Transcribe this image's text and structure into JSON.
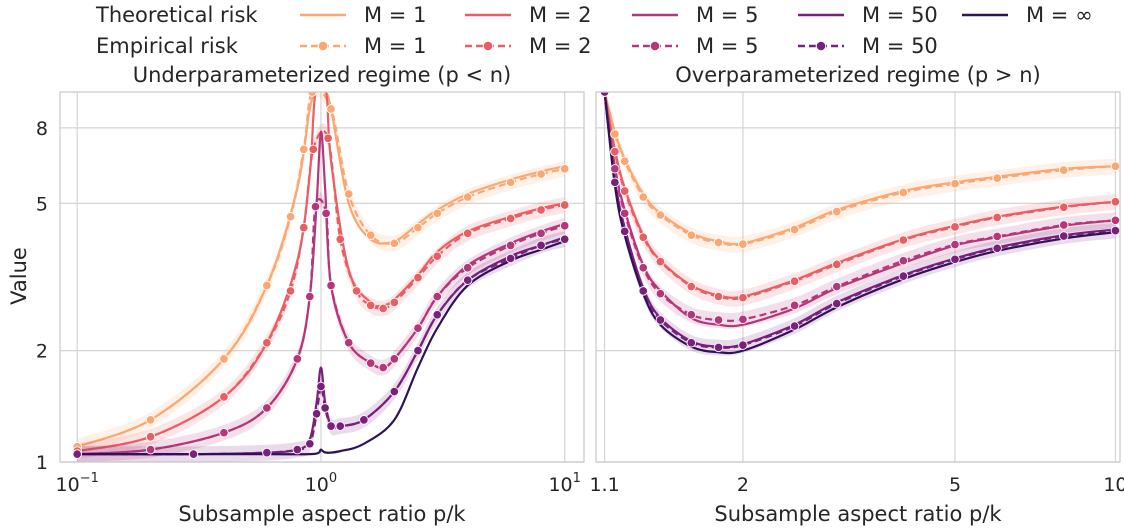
{
  "legend": {
    "row_labels": [
      "Theoretical risk",
      "Empirical risk"
    ],
    "theory_entries": [
      {
        "label": "M = 1",
        "color": "#fca772"
      },
      {
        "label": "M = 2",
        "color": "#ec5d61"
      },
      {
        "label": "M = 5",
        "color": "#b5367a"
      },
      {
        "label": "M = 50",
        "color": "#7a1f7d"
      },
      {
        "label": "M = ∞",
        "color": "#2f1357"
      }
    ],
    "empirical_entries": [
      {
        "label": "M = 1",
        "color": "#fca772"
      },
      {
        "label": "M = 2",
        "color": "#ec5d61"
      },
      {
        "label": "M = 5",
        "color": "#b5367a"
      },
      {
        "label": "M = 50",
        "color": "#7a1f7d"
      }
    ]
  },
  "ylabel": "Value",
  "chart_data": [
    {
      "type": "line",
      "title": "Underparameterized regime (p < n)",
      "xlabel": "Subsample aspect ratio p/k",
      "ylabel": "Value",
      "xscale": "log",
      "yscale": "log",
      "xlim": [
        0.085,
        12
      ],
      "ylim": [
        1,
        10
      ],
      "xticks": [
        {
          "v": 0.1,
          "label": "10",
          "exp": "−1"
        },
        {
          "v": 1,
          "label": "10",
          "exp": "0"
        },
        {
          "v": 10,
          "label": "10",
          "exp": "1"
        }
      ],
      "yticks": [
        {
          "v": 1,
          "label": "1"
        },
        {
          "v": 2,
          "label": "2"
        },
        {
          "v": 5,
          "label": "5"
        },
        {
          "v": 8,
          "label": "8"
        }
      ],
      "grid": true,
      "series": [
        {
          "name": "M = 1",
          "kind": "theoretical",
          "color": "#fca772",
          "x": [
            0.1,
            0.2,
            0.4,
            0.6,
            0.8,
            0.9,
            0.96,
            1.04,
            1.1,
            1.3,
            1.6,
            2.0,
            2.5,
            3.0,
            4.0,
            6.0,
            8.0,
            10.0
          ],
          "y": [
            1.1,
            1.3,
            1.9,
            3.0,
            5.5,
            9.0,
            10.0,
            10.0,
            9.0,
            5.0,
            4.0,
            3.95,
            4.4,
            4.8,
            5.3,
            5.8,
            6.1,
            6.3
          ]
        },
        {
          "name": "M = 1",
          "kind": "empirical",
          "color": "#fca772",
          "x": [
            0.1,
            0.2,
            0.4,
            0.6,
            0.75,
            0.85,
            0.92,
            1.1,
            1.3,
            1.6,
            2.0,
            2.5,
            3.0,
            4.0,
            6.0,
            8.0,
            10.0
          ],
          "y": [
            1.1,
            1.3,
            1.9,
            3.0,
            4.6,
            7.0,
            10.0,
            9.0,
            5.3,
            4.1,
            3.9,
            4.3,
            4.7,
            5.2,
            5.7,
            6.0,
            6.2
          ]
        },
        {
          "name": "M = 2",
          "kind": "theoretical",
          "color": "#ec5d61",
          "x": [
            0.1,
            0.2,
            0.4,
            0.6,
            0.8,
            0.9,
            0.95,
            1.05,
            1.1,
            1.3,
            1.6,
            1.8,
            2.0,
            2.5,
            3.0,
            4.0,
            6.0,
            8.0,
            10.0
          ],
          "y": [
            1.07,
            1.17,
            1.5,
            2.1,
            3.5,
            6.0,
            10.0,
            10.0,
            6.5,
            3.3,
            2.7,
            2.65,
            2.75,
            3.2,
            3.7,
            4.2,
            4.6,
            4.85,
            5.0
          ]
        },
        {
          "name": "M = 2",
          "kind": "empirical",
          "color": "#ec5d61",
          "x": [
            0.1,
            0.2,
            0.4,
            0.6,
            0.75,
            0.85,
            0.93,
            1.07,
            1.2,
            1.4,
            1.6,
            1.8,
            2.0,
            2.5,
            3.0,
            4.0,
            6.0,
            8.0,
            10.0
          ],
          "y": [
            1.07,
            1.17,
            1.5,
            2.1,
            2.9,
            4.3,
            7.0,
            7.5,
            4.0,
            2.9,
            2.65,
            2.6,
            2.7,
            3.15,
            3.6,
            4.15,
            4.55,
            4.8,
            4.95
          ]
        },
        {
          "name": "M = 5",
          "kind": "theoretical",
          "color": "#b5367a",
          "x": [
            0.1,
            0.2,
            0.4,
            0.6,
            0.8,
            0.9,
            0.96,
            1.0,
            1.04,
            1.1,
            1.3,
            1.6,
            1.8,
            2.0,
            2.5,
            3.0,
            4.0,
            6.0,
            8.0,
            10.0
          ],
          "y": [
            1.05,
            1.08,
            1.2,
            1.4,
            1.9,
            2.8,
            5.0,
            7.8,
            5.5,
            3.0,
            2.1,
            1.85,
            1.8,
            1.9,
            2.3,
            2.8,
            3.4,
            3.9,
            4.2,
            4.4
          ]
        },
        {
          "name": "M = 5",
          "kind": "empirical",
          "color": "#b5367a",
          "x": [
            0.1,
            0.2,
            0.4,
            0.6,
            0.8,
            0.9,
            0.95,
            1.05,
            1.1,
            1.3,
            1.6,
            1.8,
            2.0,
            2.5,
            3.0,
            4.0,
            6.0,
            8.0,
            10.0
          ],
          "y": [
            1.05,
            1.08,
            1.2,
            1.4,
            1.9,
            2.8,
            4.9,
            4.7,
            3.0,
            2.1,
            1.85,
            1.8,
            1.9,
            2.3,
            2.8,
            3.35,
            3.85,
            4.15,
            4.35
          ]
        },
        {
          "name": "M = 50",
          "kind": "theoretical",
          "color": "#7a1f7d",
          "x": [
            0.1,
            0.3,
            0.6,
            0.8,
            0.9,
            0.96,
            1.0,
            1.04,
            1.1,
            1.2,
            1.5,
            2.0,
            2.5,
            3.0,
            4.0,
            6.0,
            8.0,
            10.0
          ],
          "y": [
            1.05,
            1.05,
            1.06,
            1.08,
            1.15,
            1.45,
            1.8,
            1.45,
            1.25,
            1.25,
            1.3,
            1.55,
            2.0,
            2.5,
            3.1,
            3.6,
            3.85,
            4.05
          ]
        },
        {
          "name": "M = 50",
          "kind": "empirical",
          "color": "#7a1f7d",
          "x": [
            0.1,
            0.3,
            0.6,
            0.8,
            0.9,
            0.96,
            1.0,
            1.04,
            1.1,
            1.2,
            1.5,
            2.0,
            2.5,
            3.0,
            4.0,
            6.0,
            8.0,
            10.0
          ],
          "y": [
            1.05,
            1.05,
            1.06,
            1.08,
            1.12,
            1.35,
            1.6,
            1.4,
            1.25,
            1.25,
            1.3,
            1.55,
            2.0,
            2.5,
            3.1,
            3.55,
            3.85,
            4.0
          ]
        },
        {
          "name": "M = ∞",
          "kind": "theoretical",
          "color": "#2f1357",
          "x": [
            0.1,
            0.3,
            0.6,
            0.9,
            0.98,
            1.0,
            1.05,
            1.2,
            1.5,
            2.0,
            2.5,
            3.0,
            4.0,
            6.0,
            8.0,
            10.0
          ],
          "y": [
            1.05,
            1.05,
            1.05,
            1.05,
            1.06,
            1.08,
            1.06,
            1.07,
            1.12,
            1.3,
            1.8,
            2.3,
            3.0,
            3.5,
            3.75,
            3.95
          ]
        }
      ]
    },
    {
      "type": "line",
      "title": "Overparameterized regime (p > n)",
      "xlabel": "Subsample aspect ratio p/k",
      "xscale": "log",
      "yscale": "log",
      "xlim": [
        1.06,
        10.2
      ],
      "ylim": [
        1,
        10
      ],
      "xticks": [
        {
          "v": 1.1,
          "label": "1.1"
        },
        {
          "v": 2,
          "label": "2"
        },
        {
          "v": 5,
          "label": "5"
        },
        {
          "v": 10,
          "label": "10"
        }
      ],
      "grid": true,
      "series": [
        {
          "name": "M = 1",
          "kind": "theoretical",
          "color": "#fca772",
          "x": [
            1.1,
            1.15,
            1.2,
            1.3,
            1.4,
            1.6,
            1.8,
            2.0,
            2.5,
            3.0,
            4.0,
            5.0,
            6.0,
            8.0,
            10.0
          ],
          "y": [
            10.0,
            7.8,
            6.6,
            5.3,
            4.7,
            4.15,
            3.95,
            3.9,
            4.3,
            4.8,
            5.4,
            5.7,
            5.9,
            6.2,
            6.3
          ]
        },
        {
          "name": "M = 1",
          "kind": "empirical",
          "color": "#fca772",
          "x": [
            1.1,
            1.15,
            1.2,
            1.3,
            1.4,
            1.6,
            1.8,
            2.0,
            2.5,
            3.0,
            4.0,
            5.0,
            6.0,
            8.0,
            10.0
          ],
          "y": [
            10.0,
            7.7,
            6.5,
            5.2,
            4.65,
            4.1,
            3.92,
            3.88,
            4.25,
            4.75,
            5.35,
            5.65,
            5.85,
            6.15,
            6.3
          ]
        },
        {
          "name": "M = 2",
          "kind": "theoretical",
          "color": "#ec5d61",
          "x": [
            1.1,
            1.15,
            1.2,
            1.3,
            1.4,
            1.6,
            1.8,
            2.0,
            2.5,
            3.0,
            4.0,
            5.0,
            6.0,
            8.0,
            10.0
          ],
          "y": [
            10.0,
            7.0,
            5.5,
            4.1,
            3.5,
            3.0,
            2.82,
            2.8,
            3.1,
            3.45,
            4.0,
            4.35,
            4.6,
            4.9,
            5.05
          ]
        },
        {
          "name": "M = 2",
          "kind": "empirical",
          "color": "#ec5d61",
          "x": [
            1.1,
            1.15,
            1.2,
            1.3,
            1.4,
            1.6,
            1.8,
            2.0,
            2.5,
            3.0,
            4.0,
            5.0,
            6.0,
            8.0,
            10.0
          ],
          "y": [
            10.0,
            6.9,
            5.4,
            4.05,
            3.48,
            2.98,
            2.8,
            2.78,
            3.08,
            3.42,
            3.98,
            4.32,
            4.58,
            4.88,
            5.05
          ]
        },
        {
          "name": "M = 5",
          "kind": "theoretical",
          "color": "#b5367a",
          "x": [
            1.1,
            1.15,
            1.2,
            1.3,
            1.4,
            1.6,
            1.8,
            2.0,
            2.5,
            3.0,
            4.0,
            5.0,
            6.0,
            8.0,
            10.0
          ],
          "y": [
            10.0,
            6.3,
            4.8,
            3.4,
            2.9,
            2.45,
            2.35,
            2.35,
            2.6,
            2.95,
            3.45,
            3.85,
            4.05,
            4.35,
            4.5
          ]
        },
        {
          "name": "M = 5",
          "kind": "empirical",
          "color": "#b5367a",
          "x": [
            1.1,
            1.15,
            1.2,
            1.3,
            1.4,
            1.6,
            1.8,
            2.0,
            2.5,
            3.0,
            4.0,
            5.0,
            6.0,
            8.0,
            10.0
          ],
          "y": [
            10.0,
            6.2,
            4.7,
            3.35,
            2.85,
            2.5,
            2.42,
            2.43,
            2.65,
            2.98,
            3.5,
            3.87,
            4.07,
            4.37,
            4.5
          ]
        },
        {
          "name": "M = 50",
          "kind": "theoretical",
          "color": "#7a1f7d",
          "x": [
            1.1,
            1.15,
            1.2,
            1.3,
            1.4,
            1.6,
            1.8,
            2.0,
            2.5,
            3.0,
            4.0,
            5.0,
            6.0,
            8.0,
            10.0
          ],
          "y": [
            10.0,
            5.8,
            4.3,
            2.95,
            2.45,
            2.12,
            2.05,
            2.08,
            2.35,
            2.7,
            3.2,
            3.55,
            3.8,
            4.1,
            4.25
          ]
        },
        {
          "name": "M = 50",
          "kind": "empirical",
          "color": "#7a1f7d",
          "x": [
            1.1,
            1.15,
            1.2,
            1.3,
            1.4,
            1.6,
            1.8,
            2.0,
            2.5,
            3.0,
            4.0,
            5.0,
            6.0,
            8.0,
            10.0
          ],
          "y": [
            10.0,
            5.7,
            4.2,
            2.9,
            2.42,
            2.1,
            2.04,
            2.07,
            2.33,
            2.68,
            3.18,
            3.53,
            3.78,
            4.08,
            4.22
          ]
        },
        {
          "name": "M = ∞",
          "kind": "theoretical",
          "color": "#2f1357",
          "x": [
            1.1,
            1.15,
            1.2,
            1.3,
            1.4,
            1.6,
            1.8,
            2.0,
            2.5,
            3.0,
            4.0,
            5.0,
            6.0,
            8.0,
            10.0
          ],
          "y": [
            10.0,
            5.6,
            4.1,
            2.85,
            2.35,
            2.05,
            1.98,
            2.0,
            2.28,
            2.62,
            3.12,
            3.47,
            3.72,
            4.02,
            4.18
          ]
        }
      ]
    }
  ]
}
